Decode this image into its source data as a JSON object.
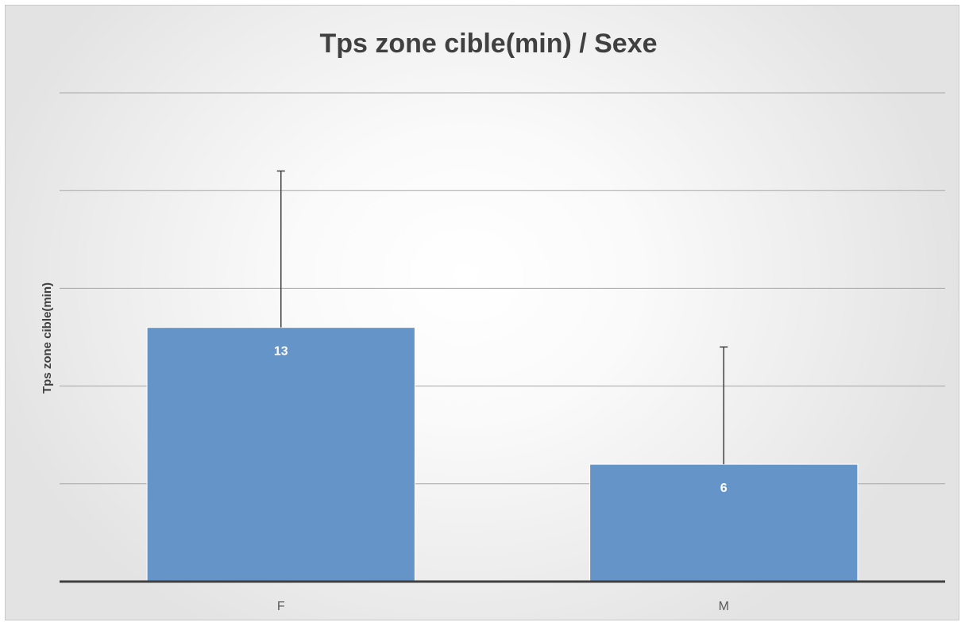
{
  "chart_data": {
    "type": "bar",
    "title": "Tps zone cible(min) / Sexe",
    "xlabel": "",
    "ylabel": "Tps zone cible(min)",
    "categories": [
      "F",
      "M"
    ],
    "values": [
      13,
      6
    ],
    "error_plus": [
      8,
      6
    ],
    "ylim": [
      0,
      25
    ],
    "grid": true,
    "legend": "none",
    "colors": {
      "bar": "#6594c8",
      "bar_edge": "#ffffff",
      "grid": "#a6a6a6",
      "axis": "#404040",
      "error_bar": "#404040",
      "data_label": "#ffffff"
    }
  }
}
